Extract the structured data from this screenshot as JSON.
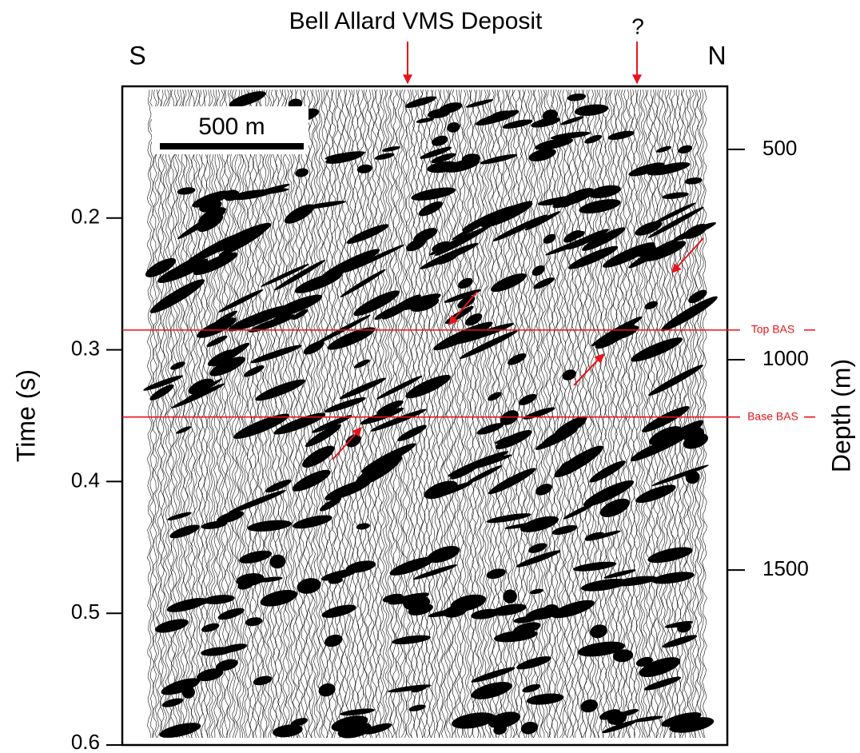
{
  "chart_data": {
    "type": "seismic",
    "title": "Bell Allard VMS Deposit",
    "question_mark": "?",
    "left_end_label": "S",
    "right_end_label": "N",
    "y_label": "Time (s)",
    "y2_label": "Depth (m)",
    "scale_bar_label": "500 m",
    "ylim": [
      0.1,
      0.6
    ],
    "yticks": [
      0.2,
      0.3,
      0.4,
      0.5,
      0.6
    ],
    "y2lim": [
      350,
      1916
    ],
    "y2ticks": [
      500,
      1000,
      1500
    ],
    "horizons": [
      {
        "label": "Top BAS",
        "value": 0.285,
        "color": "#e8141c"
      },
      {
        "label": "Base BAS",
        "value": 0.351,
        "color": "#e8141c"
      }
    ]
  }
}
